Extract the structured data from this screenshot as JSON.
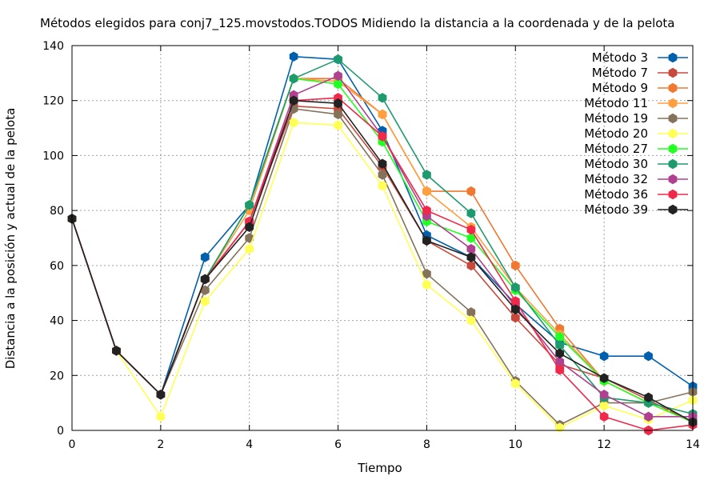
{
  "chart_data": {
    "type": "line",
    "title": "Métodos elegidos para conj7_125.movstodos.TODOS Midiendo la distancia a la coordenada y de la pelota",
    "xlabel": "Tiempo",
    "ylabel": "Distancia a la posición y actual de la pelota",
    "xlim": [
      0,
      14
    ],
    "ylim": [
      0,
      140
    ],
    "x_ticks": [
      0,
      2,
      4,
      6,
      8,
      10,
      12,
      14
    ],
    "y_ticks": [
      0,
      20,
      40,
      60,
      80,
      100,
      120,
      140
    ],
    "grid": true,
    "legend_position": "top-right",
    "x": [
      0,
      1,
      2,
      3,
      4,
      5,
      6,
      7,
      8,
      9,
      10,
      11,
      12,
      13,
      14
    ],
    "series": [
      {
        "name": "Método 3",
        "color": "#0060ad",
        "values": [
          77,
          29,
          13,
          63,
          82,
          136,
          135,
          109,
          71,
          63,
          46,
          32,
          27,
          27,
          16
        ]
      },
      {
        "name": "Método 7",
        "color": "#c8493c",
        "values": [
          77,
          29,
          13,
          55,
          76,
          118,
          117,
          96,
          69,
          60,
          41,
          24,
          19,
          11,
          3
        ]
      },
      {
        "name": "Método 9",
        "color": "#f07830",
        "values": [
          77,
          29,
          13,
          55,
          82,
          128,
          128,
          115,
          87,
          87,
          60,
          37,
          18,
          10,
          3
        ]
      },
      {
        "name": "Método 11",
        "color": "#ff9f40",
        "values": [
          77,
          29,
          13,
          55,
          80,
          128,
          127,
          115,
          87,
          74,
          52,
          35,
          18,
          10,
          3
        ]
      },
      {
        "name": "Método 19",
        "color": "#84735a",
        "values": [
          77,
          29,
          13,
          51,
          70,
          117,
          115,
          93,
          57,
          43,
          18,
          2,
          10,
          10,
          14
        ]
      },
      {
        "name": "Método 20",
        "color": "#ffff55",
        "values": [
          77,
          29,
          5,
          47,
          66,
          112,
          111,
          89,
          53,
          40,
          17,
          1,
          9,
          4,
          11
        ]
      },
      {
        "name": "Método 27",
        "color": "#22ff22",
        "values": [
          77,
          29,
          13,
          55,
          82,
          128,
          126,
          105,
          76,
          70,
          51,
          34,
          18,
          10,
          3
        ]
      },
      {
        "name": "Método 30",
        "color": "#1e9b6e",
        "values": [
          77,
          29,
          13,
          55,
          82,
          128,
          135,
          121,
          93,
          79,
          52,
          31,
          12,
          10,
          6
        ]
      },
      {
        "name": "Método 32",
        "color": "#b04090",
        "values": [
          77,
          29,
          13,
          55,
          76,
          122,
          129,
          107,
          78,
          66,
          45,
          25,
          13,
          5,
          5
        ]
      },
      {
        "name": "Método 36",
        "color": "#f0284a",
        "values": [
          77,
          29,
          13,
          55,
          76,
          120,
          121,
          107,
          80,
          73,
          47,
          22,
          5,
          0,
          2
        ]
      },
      {
        "name": "Método 39",
        "color": "#222222",
        "values": [
          77,
          29,
          13,
          55,
          74,
          120,
          119,
          97,
          69,
          63,
          44,
          28,
          19,
          12,
          3
        ]
      }
    ]
  }
}
